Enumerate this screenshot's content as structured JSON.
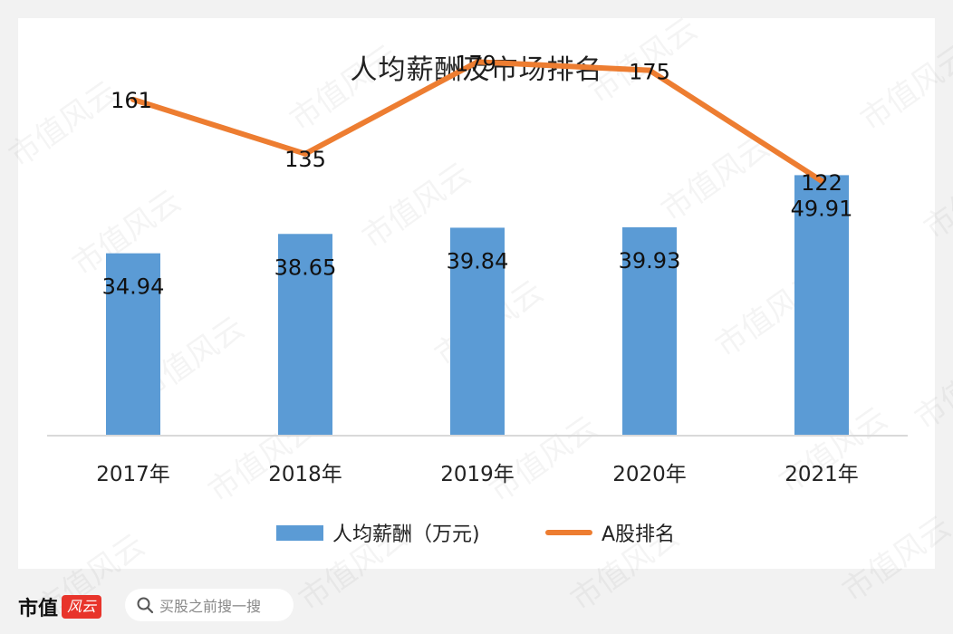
{
  "chart_data": {
    "type": "bar",
    "title": "人均薪酬及市场排名",
    "categories": [
      "2017年",
      "2018年",
      "2019年",
      "2020年",
      "2021年"
    ],
    "series": [
      {
        "name": "人均薪酬（万元)",
        "type": "bar",
        "values": [
          34.94,
          38.65,
          39.84,
          39.93,
          49.91
        ],
        "color": "#5b9bd5"
      },
      {
        "name": "A股排名",
        "type": "line",
        "values": [
          161,
          135,
          179,
          175,
          122
        ],
        "color": "#ed7d31"
      }
    ],
    "bar_axis_range": [
      0,
      80
    ],
    "line_axis_range": [
      0,
      200
    ],
    "grid": false,
    "legend": "bottom"
  },
  "watermark_text": "市值风云",
  "footer": {
    "brand_text": "市值",
    "brand_badge": "风云",
    "search_placeholder": "买股之前搜一搜",
    "icon": "search-icon"
  }
}
